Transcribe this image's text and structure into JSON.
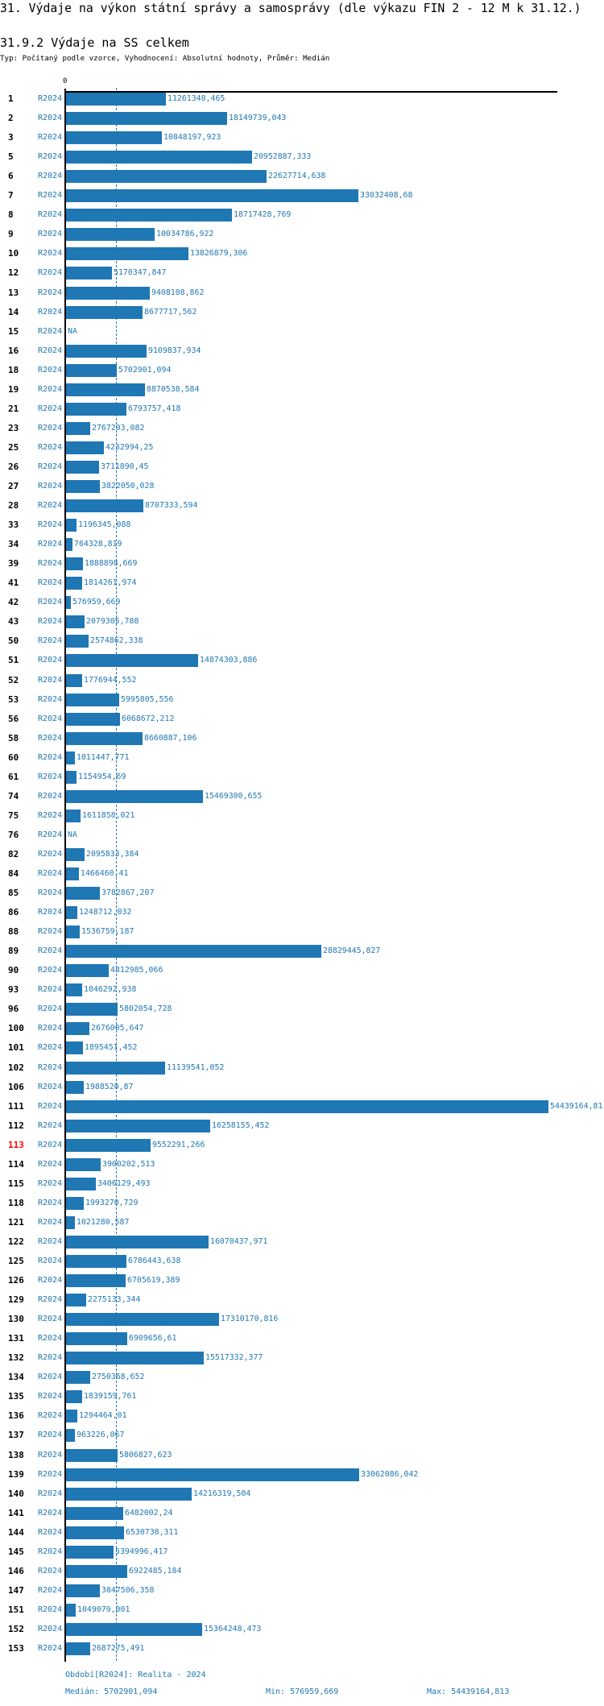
{
  "header": {
    "title": "31. Výdaje na výkon státní správy a samosprávy (dle výkazu FIN 2 - 12 M k 31.12.)",
    "subtitle": "31.9.2 Výdaje na SS celkem",
    "description": "Typ: Počítaný podle vzorce, Vyhodnocení: Absolutní hodnoty, Průměr: Medián"
  },
  "chart_data": {
    "type": "bar",
    "orientation": "horizontal",
    "x_tick_labels": [
      "0"
    ],
    "xlim": [
      0,
      54439164.813
    ],
    "reference_line": {
      "type": "median",
      "value": 5702901.094
    },
    "bar_color": "#1f77b4",
    "highlight_category": "113",
    "highlight_color": "#ff0000",
    "period_label": "R2024",
    "categories": [
      "1",
      "2",
      "3",
      "5",
      "6",
      "7",
      "8",
      "9",
      "10",
      "12",
      "13",
      "14",
      "15",
      "16",
      "18",
      "19",
      "21",
      "23",
      "25",
      "26",
      "27",
      "28",
      "33",
      "34",
      "39",
      "41",
      "42",
      "43",
      "50",
      "51",
      "52",
      "53",
      "56",
      "58",
      "60",
      "61",
      "74",
      "75",
      "76",
      "82",
      "84",
      "85",
      "86",
      "88",
      "89",
      "90",
      "93",
      "96",
      "100",
      "101",
      "102",
      "106",
      "111",
      "112",
      "113",
      "114",
      "115",
      "118",
      "121",
      "122",
      "125",
      "126",
      "129",
      "130",
      "131",
      "132",
      "134",
      "135",
      "136",
      "137",
      "138",
      "139",
      "140",
      "141",
      "144",
      "145",
      "146",
      "147",
      "151",
      "152",
      "153"
    ],
    "value_labels": [
      "11261348,465",
      "18149739,043",
      "10848197,923",
      "20952887,333",
      "22627714,638",
      "33032408,68",
      "18717428,769",
      "10034786,922",
      "13826879,306",
      "5170347,847",
      "9408108,862",
      "8677717,562",
      "NA",
      "9109837,934",
      "5702901,094",
      "8870538,584",
      "6793757,418",
      "2767203,082",
      "4232994,25",
      "3711890,45",
      "3822050,028",
      "8707333,594",
      "1196345,088",
      "764328,819",
      "1888898,669",
      "1814261,974",
      "576959,669",
      "2079305,788",
      "2574862,338",
      "14874303,886",
      "1776944,552",
      "5995805,556",
      "6068672,212",
      "8660887,106",
      "1011447,771",
      "1154954,69",
      "15469300,655",
      "1611858,021",
      "NA",
      "2095833,384",
      "1466460,41",
      "3782867,207",
      "1248712,032",
      "1536759,187",
      "28829445,827",
      "4812985,066",
      "1846292,938",
      "5802054,728",
      "2676005,647",
      "1895451,452",
      "11139541,052",
      "1988520,87",
      "54439164,81",
      "16258155,452",
      "9552291,266",
      "3900202,513",
      "3406129,493",
      "1993270,729",
      "1021280,587",
      "16070437,971",
      "6786443,638",
      "6705619,389",
      "2275133,344",
      "17310170,816",
      "6909656,61",
      "15517332,377",
      "2750368,652",
      "1839159,761",
      "1294464,01",
      "963226,067",
      "5806827,623",
      "33062086,042",
      "14216319,504",
      "6482002,24",
      "6530738,311",
      "5394996,417",
      "6922485,184",
      "3847506,358",
      "1049079,001",
      "15364248,473",
      "2687275,491"
    ]
  },
  "footer": {
    "period": "Období[R2024]: Realita - 2024",
    "median": "Medián: 5702901,094",
    "min": "Min: 576959,669",
    "max": "Max: 54439164,813"
  }
}
